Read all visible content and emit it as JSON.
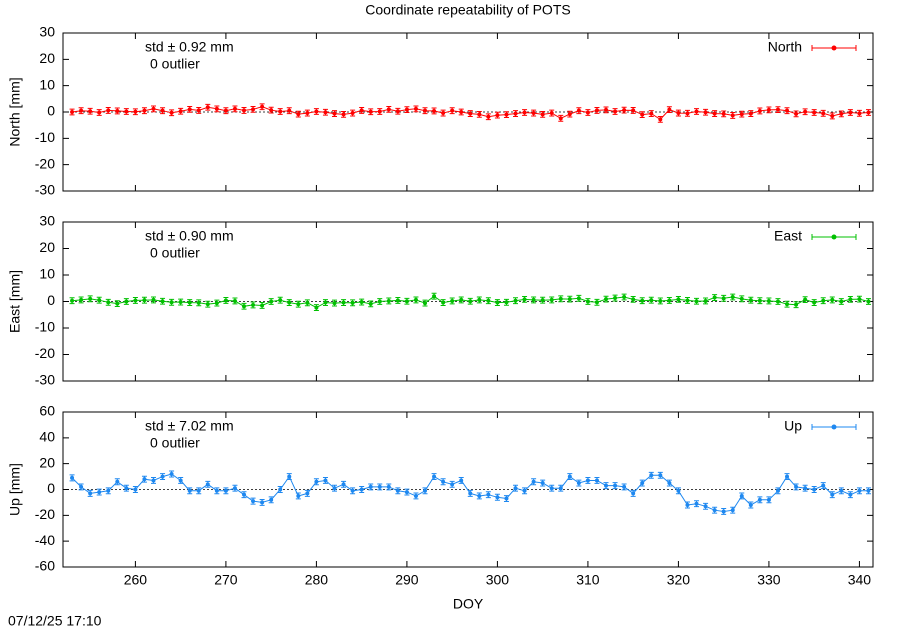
{
  "title": "Coordinate repeatability of POTS",
  "timestamp": "07/12/25 17:10",
  "chart_data": [
    {
      "type": "line",
      "ylabel": "North [mm]",
      "std_label": "std ± 0.92 mm",
      "outlier_label": "0 outlier",
      "xlim": [
        252,
        341.5
      ],
      "xticks": [
        260,
        270,
        280,
        290,
        300,
        310,
        320,
        330,
        340
      ],
      "ylim": [
        -30,
        30
      ],
      "yticks": [
        -30,
        -20,
        -10,
        0,
        10,
        20,
        30
      ],
      "zeroline": true,
      "x": [
        253,
        254,
        255,
        256,
        257,
        258,
        259,
        260,
        261,
        262,
        263,
        264,
        265,
        266,
        267,
        268,
        269,
        270,
        271,
        272,
        273,
        274,
        275,
        276,
        277,
        278,
        279,
        280,
        281,
        282,
        283,
        284,
        285,
        286,
        287,
        288,
        289,
        290,
        291,
        292,
        293,
        294,
        295,
        296,
        297,
        298,
        299,
        300,
        301,
        302,
        303,
        304,
        305,
        306,
        307,
        308,
        309,
        310,
        311,
        312,
        313,
        314,
        315,
        316,
        317,
        318,
        319,
        320,
        321,
        322,
        323,
        324,
        325,
        326,
        327,
        328,
        329,
        330,
        331,
        332,
        333,
        334,
        335,
        336,
        337,
        338,
        339,
        340,
        341
      ],
      "series": [
        {
          "name": "North",
          "color": "#ff0000",
          "error": 1.1,
          "values": [
            0,
            0.5,
            0.3,
            -0.2,
            0.6,
            0.4,
            0.2,
            0.1,
            0.5,
            1.2,
            0.5,
            -0.3,
            0.3,
            1.0,
            0.6,
            1.8,
            1.2,
            0.5,
            1.2,
            0.6,
            1.0,
            2.0,
            0.7,
            0.2,
            0.5,
            -0.8,
            -0.4,
            0.2,
            -0.1,
            -0.6,
            -0.9,
            -0.4,
            0.6,
            0.1,
            0.2,
            1.0,
            0.3,
            0.9,
            1.2,
            0.5,
            0.4,
            -0.4,
            0.5,
            0,
            -0.6,
            -0.9,
            -1.8,
            -1.2,
            -1.0,
            -0.6,
            -0.2,
            -0.4,
            -0.9,
            -0.4,
            -2.4,
            -0.8,
            0.5,
            -0.2,
            0.6,
            0.8,
            0.2,
            0.7,
            0.6,
            -1.0,
            -0.6,
            -2.8,
            0.9,
            -0.4,
            -0.5,
            0.2,
            -0.1,
            -0.6,
            -0.7,
            -1.3,
            -0.8,
            -0.6,
            0.4,
            0.8,
            0.9,
            0.5,
            -0.7,
            0.1,
            -0.2,
            -0.5,
            -1.5,
            -0.7,
            -0.2,
            -0.5,
            -0.2
          ]
        }
      ]
    },
    {
      "type": "line",
      "ylabel": "East [mm]",
      "std_label": "std ± 0.90 mm",
      "outlier_label": "0 outlier",
      "xlim": [
        252,
        341.5
      ],
      "xticks": [
        260,
        270,
        280,
        290,
        300,
        310,
        320,
        330,
        340
      ],
      "ylim": [
        -30,
        30
      ],
      "yticks": [
        -30,
        -20,
        -10,
        0,
        10,
        20,
        30
      ],
      "zeroline": true,
      "x": [
        253,
        254,
        255,
        256,
        257,
        258,
        259,
        260,
        261,
        262,
        263,
        264,
        265,
        266,
        267,
        268,
        269,
        270,
        271,
        272,
        273,
        274,
        275,
        276,
        277,
        278,
        279,
        280,
        281,
        282,
        283,
        284,
        285,
        286,
        287,
        288,
        289,
        290,
        291,
        292,
        293,
        294,
        295,
        296,
        297,
        298,
        299,
        300,
        301,
        302,
        303,
        304,
        305,
        306,
        307,
        308,
        309,
        310,
        311,
        312,
        313,
        314,
        315,
        316,
        317,
        318,
        319,
        320,
        321,
        322,
        323,
        324,
        325,
        326,
        327,
        328,
        329,
        330,
        331,
        332,
        333,
        334,
        335,
        336,
        337,
        338,
        339,
        340,
        341
      ],
      "series": [
        {
          "name": "East",
          "color": "#00c000",
          "error": 1.1,
          "values": [
            0.3,
            0.6,
            1.0,
            0.5,
            -0.3,
            -0.8,
            0,
            0.4,
            0.5,
            0.6,
            0.1,
            -0.3,
            -0.2,
            -0.4,
            -0.5,
            -1.0,
            -0.6,
            0.4,
            0.2,
            -1.8,
            -1.3,
            -1.5,
            0,
            0.5,
            -0.4,
            -1.0,
            -0.5,
            -2.3,
            -0.4,
            -0.6,
            -0.4,
            -0.5,
            -0.2,
            -0.9,
            0,
            0.2,
            0.4,
            0.1,
            0.6,
            -0.6,
            2.0,
            -0.4,
            0.2,
            0.6,
            0.1,
            0.6,
            0.3,
            -0.4,
            -0.3,
            0.3,
            0.8,
            0.6,
            0.5,
            0.6,
            1.0,
            0.9,
            1.2,
            0,
            -0.3,
            0.9,
            1.3,
            1.7,
            0.8,
            0.3,
            0.5,
            0.2,
            0.4,
            0.8,
            0.4,
            0.1,
            0.2,
            1.5,
            1.2,
            1.7,
            1.0,
            0.5,
            0.3,
            0.2,
            0,
            -1.0,
            -1.2,
            0.7,
            -0.4,
            0.3,
            0.6,
            0,
            0.8,
            0.9,
            0
          ]
        }
      ]
    },
    {
      "type": "line",
      "ylabel": "Up [mm]",
      "xlabel": "DOY",
      "std_label": "std ± 7.02 mm",
      "outlier_label": "0 outlier",
      "xlim": [
        252,
        341.5
      ],
      "xticks": [
        260,
        270,
        280,
        290,
        300,
        310,
        320,
        330,
        340
      ],
      "ylim": [
        -60,
        60
      ],
      "yticks": [
        -60,
        -40,
        -20,
        0,
        20,
        40,
        60
      ],
      "zeroline": true,
      "x": [
        253,
        254,
        255,
        256,
        257,
        258,
        259,
        260,
        261,
        262,
        263,
        264,
        265,
        266,
        267,
        268,
        269,
        270,
        271,
        272,
        273,
        274,
        275,
        276,
        277,
        278,
        279,
        280,
        281,
        282,
        283,
        284,
        285,
        286,
        287,
        288,
        289,
        290,
        291,
        292,
        293,
        294,
        295,
        296,
        297,
        298,
        299,
        300,
        301,
        302,
        303,
        304,
        305,
        306,
        307,
        308,
        309,
        310,
        311,
        312,
        313,
        314,
        315,
        316,
        317,
        318,
        319,
        320,
        321,
        322,
        323,
        324,
        325,
        326,
        327,
        328,
        329,
        330,
        331,
        332,
        333,
        334,
        335,
        336,
        337,
        338,
        339,
        340,
        341
      ],
      "series": [
        {
          "name": "Up",
          "color": "#1e88f0",
          "error": 2.3,
          "values": [
            9,
            2,
            -3,
            -2,
            -1,
            6,
            1,
            0,
            8,
            7,
            10,
            12,
            7,
            -1,
            -1,
            4,
            -1,
            -1,
            1,
            -4,
            -9,
            -10,
            -8,
            0,
            10,
            -5,
            -3,
            6,
            7,
            1,
            4,
            -1,
            0,
            2,
            2,
            2,
            -1,
            -2,
            -5,
            -1,
            10,
            6,
            4,
            7,
            -3,
            -5,
            -4,
            -6,
            -7,
            1,
            -1,
            6,
            5,
            1,
            1,
            10,
            5,
            7,
            7,
            3,
            3,
            2,
            -3,
            5,
            11,
            11,
            5,
            -1,
            -12,
            -11,
            -13,
            -16,
            -17,
            -16,
            -5,
            -12,
            -8,
            -8,
            -1,
            10,
            2,
            1,
            0,
            3,
            -4,
            -1,
            -4,
            -1,
            -1
          ]
        }
      ]
    }
  ]
}
